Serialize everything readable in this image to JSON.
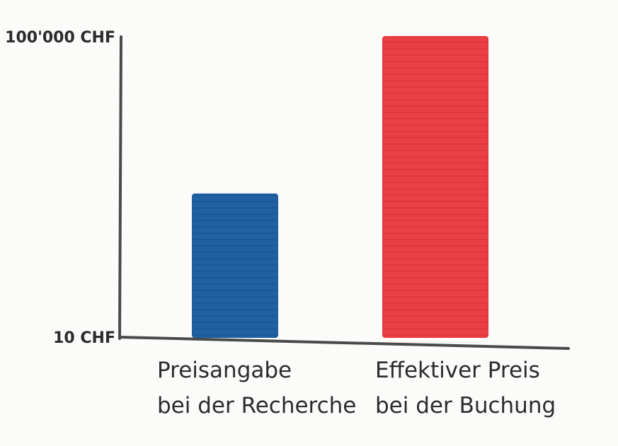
{
  "chart_data": {
    "type": "bar",
    "categories": [
      [
        "Preisangabe",
        "bei der Recherche"
      ],
      [
        "Effektiver Preis",
        "bei der Buchung"
      ]
    ],
    "values": [
      800,
      100000
    ],
    "y_ticks": [
      {
        "value": 10,
        "label": "10 CHF"
      },
      {
        "value": 100000,
        "label": "100'000 CHF"
      }
    ],
    "y_scale": "log",
    "ylim": [
      10,
      100000
    ],
    "colors": [
      "#1f5fa0",
      "#e8383d"
    ],
    "grid": false,
    "title": "",
    "xlabel": "",
    "ylabel": ""
  }
}
